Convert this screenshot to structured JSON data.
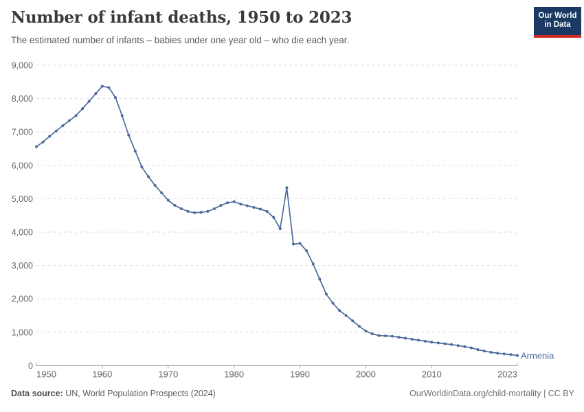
{
  "header": {
    "title": "Number of infant deaths, 1950 to 2023",
    "subtitle": "The estimated number of infants – babies under one year old – who die each year.",
    "logo": {
      "line1": "Our World",
      "line2": "in Data"
    }
  },
  "footer": {
    "source_label": "Data source:",
    "source_text": "UN, World Population Prospects (2024)",
    "attribution": "OurWorldinData.org/child-mortality | CC BY"
  },
  "colors": {
    "line": "#4C6A9C",
    "entity_label": "#4C6A9C",
    "grid": "#dbdbdb",
    "axis": "#a3a3a3",
    "tick_label": "#666666",
    "logo_bg": "#1a3a63",
    "logo_red": "#cc2d24"
  },
  "chart_data": {
    "type": "line",
    "title": "Number of infant deaths, 1950 to 2023",
    "subtitle": "The estimated number of infants – babies under one year old – who die each year.",
    "xlabel": "",
    "ylabel": "",
    "xlim": [
      1950,
      2023
    ],
    "ylim": [
      0,
      9000
    ],
    "x_ticks": [
      1950,
      1960,
      1970,
      1980,
      1990,
      2000,
      2010,
      2023
    ],
    "y_ticks": [
      0,
      1000,
      2000,
      3000,
      4000,
      5000,
      6000,
      7000,
      8000,
      9000
    ],
    "grid": "horizontal-dashed",
    "legend": "inline-end-label",
    "series": [
      {
        "name": "Armenia",
        "points": [
          [
            1950,
            6560
          ],
          [
            1951,
            6700
          ],
          [
            1952,
            6870
          ],
          [
            1953,
            7030
          ],
          [
            1954,
            7190
          ],
          [
            1955,
            7340
          ],
          [
            1956,
            7490
          ],
          [
            1957,
            7700
          ],
          [
            1958,
            7920
          ],
          [
            1959,
            8150
          ],
          [
            1960,
            8370
          ],
          [
            1961,
            8330
          ],
          [
            1962,
            8030
          ],
          [
            1963,
            7490
          ],
          [
            1964,
            6910
          ],
          [
            1965,
            6430
          ],
          [
            1966,
            5950
          ],
          [
            1967,
            5660
          ],
          [
            1968,
            5400
          ],
          [
            1969,
            5180
          ],
          [
            1970,
            4950
          ],
          [
            1971,
            4800
          ],
          [
            1972,
            4700
          ],
          [
            1973,
            4620
          ],
          [
            1974,
            4580
          ],
          [
            1975,
            4590
          ],
          [
            1976,
            4620
          ],
          [
            1977,
            4700
          ],
          [
            1978,
            4800
          ],
          [
            1979,
            4880
          ],
          [
            1980,
            4910
          ],
          [
            1981,
            4840
          ],
          [
            1982,
            4790
          ],
          [
            1983,
            4740
          ],
          [
            1984,
            4690
          ],
          [
            1985,
            4620
          ],
          [
            1986,
            4440
          ],
          [
            1987,
            4100
          ],
          [
            1988,
            5330
          ],
          [
            1989,
            3640
          ],
          [
            1990,
            3660
          ],
          [
            1991,
            3440
          ],
          [
            1992,
            3050
          ],
          [
            1993,
            2590
          ],
          [
            1994,
            2140
          ],
          [
            1995,
            1870
          ],
          [
            1996,
            1650
          ],
          [
            1997,
            1500
          ],
          [
            1998,
            1340
          ],
          [
            1999,
            1180
          ],
          [
            2000,
            1030
          ],
          [
            2001,
            950
          ],
          [
            2002,
            900
          ],
          [
            2003,
            890
          ],
          [
            2004,
            880
          ],
          [
            2005,
            850
          ],
          [
            2006,
            820
          ],
          [
            2007,
            790
          ],
          [
            2008,
            760
          ],
          [
            2009,
            730
          ],
          [
            2010,
            700
          ],
          [
            2011,
            680
          ],
          [
            2012,
            655
          ],
          [
            2013,
            630
          ],
          [
            2014,
            600
          ],
          [
            2015,
            565
          ],
          [
            2016,
            530
          ],
          [
            2017,
            480
          ],
          [
            2018,
            435
          ],
          [
            2019,
            400
          ],
          [
            2020,
            370
          ],
          [
            2021,
            350
          ],
          [
            2022,
            330
          ],
          [
            2023,
            300
          ]
        ]
      }
    ]
  }
}
